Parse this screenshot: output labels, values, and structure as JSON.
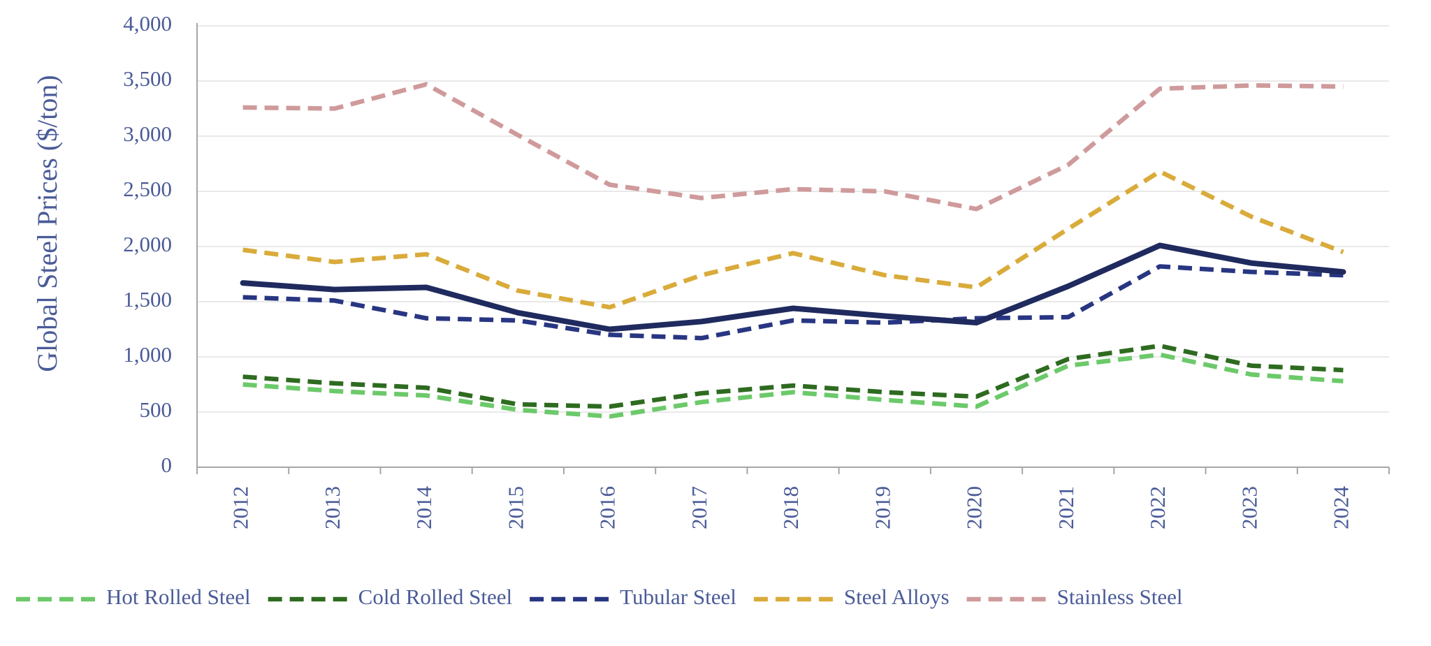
{
  "chart_data": {
    "type": "line",
    "y_label": "Global Steel Prices ($/ton)",
    "categories": [
      "2012",
      "2013",
      "2014",
      "2015",
      "2016",
      "2017",
      "2018",
      "2019",
      "2020",
      "2021",
      "2022",
      "2023",
      "2024"
    ],
    "series": [
      {
        "name": "Hot Rolled Steel",
        "color": "#6cc96a",
        "dashed": true,
        "values": [
          750,
          690,
          650,
          520,
          460,
          590,
          680,
          610,
          550,
          920,
          1020,
          840,
          780
        ]
      },
      {
        "name": "Cold Rolled Steel",
        "color": "#2e6b20",
        "dashed": true,
        "values": [
          820,
          760,
          720,
          570,
          550,
          670,
          740,
          680,
          640,
          980,
          1100,
          920,
          880
        ]
      },
      {
        "name": "Tubular Steel",
        "color": "#283682",
        "dashed": true,
        "values": [
          1540,
          1510,
          1350,
          1330,
          1200,
          1170,
          1330,
          1310,
          1350,
          1360,
          1820,
          1770,
          1740
        ]
      },
      {
        "name": "Steel Alloys",
        "color": "#d9ab3a",
        "dashed": true,
        "values": [
          1970,
          1860,
          1930,
          1600,
          1450,
          1740,
          1940,
          1740,
          1630,
          2160,
          2680,
          2270,
          1950
        ]
      },
      {
        "name": "Stainless Steel",
        "color": "#cf9a9b",
        "dashed": true,
        "values": [
          3260,
          3250,
          3470,
          3010,
          2560,
          2440,
          2520,
          2500,
          2340,
          2740,
          3430,
          3460,
          3450
        ]
      },
      {
        "color": "#1f2a5e",
        "dashed": false,
        "values": [
          1670,
          1610,
          1630,
          1400,
          1250,
          1320,
          1440,
          1370,
          1310,
          1640,
          2010,
          1850,
          1770
        ]
      }
    ],
    "ylim": [
      0,
      4000
    ],
    "yticks": [
      0,
      500,
      {
        "value": 1000,
        "label": "1,000"
      },
      {
        "value": 1500,
        "label": "1,500"
      },
      {
        "value": 2000,
        "label": "2,000"
      },
      {
        "value": 2500,
        "label": "2,500"
      },
      {
        "value": 3000,
        "label": "3,000"
      },
      {
        "value": 3500,
        "label": "3,500"
      },
      {
        "value": 4000,
        "label": "4,000"
      }
    ],
    "grid": true,
    "legend": "bottom"
  }
}
